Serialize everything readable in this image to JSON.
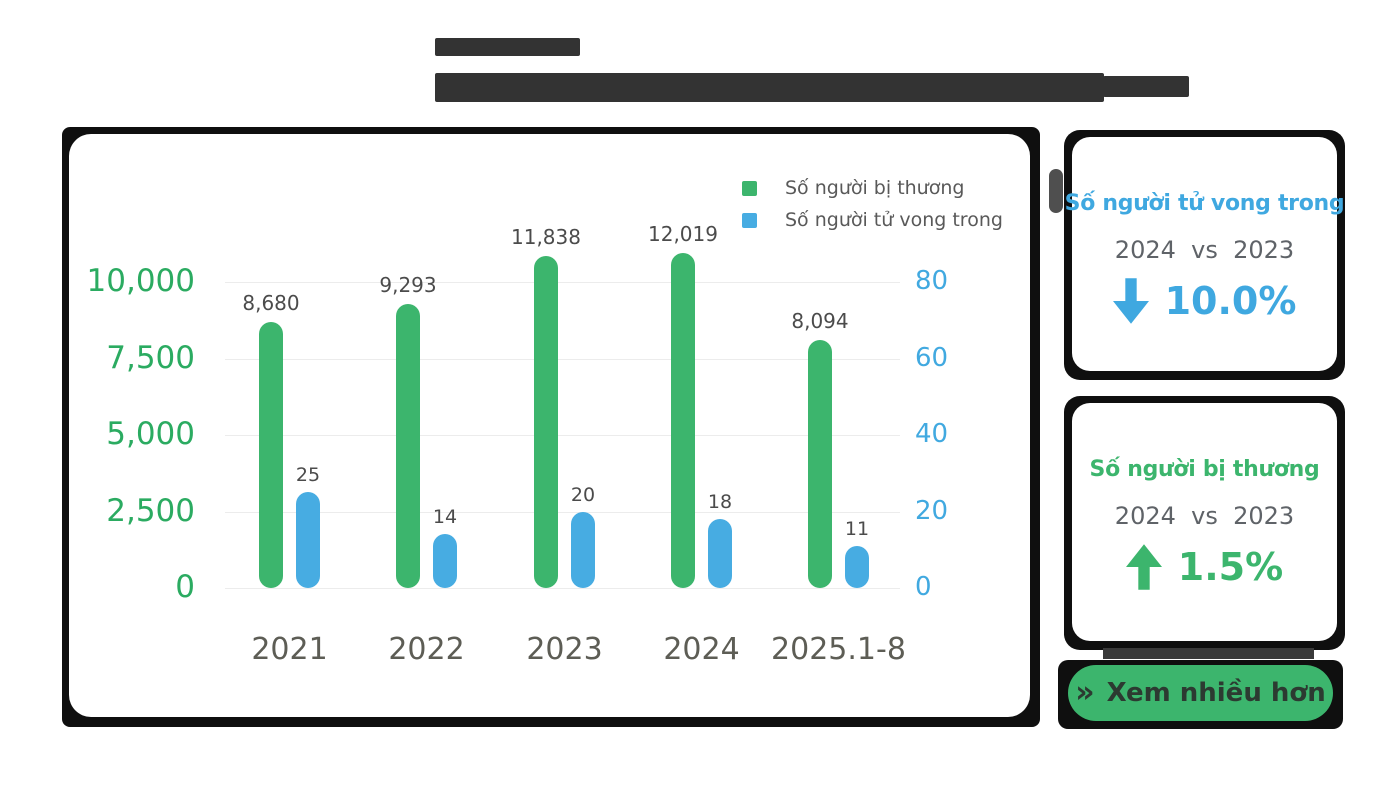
{
  "chart_data": {
    "type": "bar",
    "title": "",
    "categories": [
      "2021",
      "2022",
      "2023",
      "2024",
      "2025.1-8"
    ],
    "series": [
      {
        "name": "Số người bị thương",
        "axis": "left",
        "color": "#3cb56d",
        "values": [
          8680,
          9293,
          11838,
          12019,
          8094
        ],
        "labels": [
          "8,680",
          "9,293",
          "11,838",
          "12,019",
          "8,094"
        ]
      },
      {
        "name": "Số người tử vong trong",
        "axis": "right",
        "color": "#47ace2",
        "values": [
          25,
          14,
          20,
          18,
          11
        ],
        "labels": [
          "25",
          "14",
          "20",
          "18",
          "11"
        ]
      }
    ],
    "left_axis": {
      "tick_labels": [
        "0",
        "2,500",
        "5,000",
        "7,500",
        "10,000"
      ],
      "tick_values": [
        0,
        2500,
        5000,
        7500,
        10000
      ],
      "color": "#2bab61"
    },
    "right_axis": {
      "tick_labels": [
        "0",
        "20",
        "40",
        "60",
        "80"
      ],
      "tick_values": [
        0,
        20,
        40,
        60,
        80
      ],
      "color": "#41a9e0"
    },
    "legend": {
      "position": "top-right"
    },
    "grid": true
  },
  "panels": [
    {
      "title": "Số người tử vong trong",
      "compare": "2024  vs  2023",
      "direction": "down",
      "percent": "10.0%",
      "accent": "#3fa8e0"
    },
    {
      "title": "Số người bị thương",
      "compare": "2024  vs  2023",
      "direction": "up",
      "percent": "1.5%",
      "accent": "#3cb56d"
    }
  ],
  "more_button": {
    "icon": "»",
    "label": "Xem nhiều hơn"
  },
  "colors": {
    "frame": "#0f0f0f",
    "redaction": "#333333",
    "gridline": "#ececec"
  }
}
